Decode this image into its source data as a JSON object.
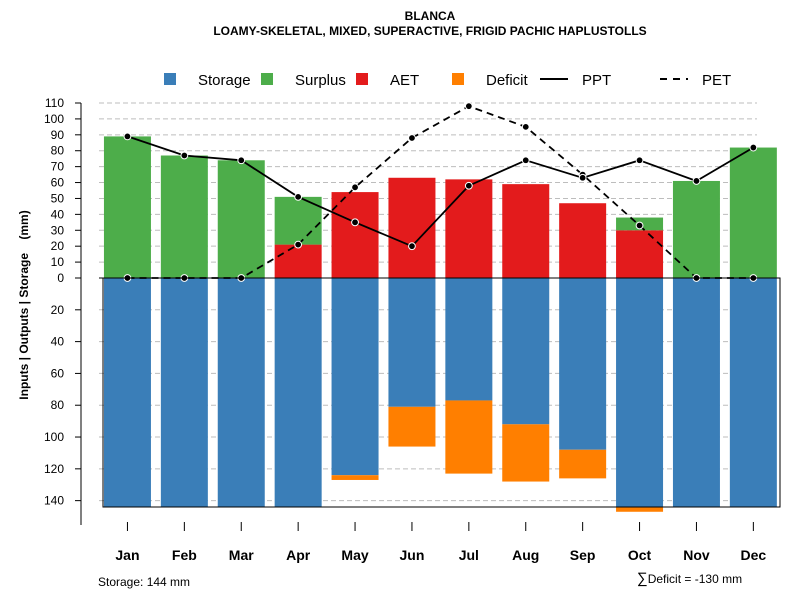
{
  "chart_data": {
    "type": "bar",
    "title": "BLANCA",
    "subtitle": "LOAMY-SKELETAL, MIXED, SUPERACTIVE, FRIGID PACHIC HAPLUSTOLLS",
    "ylabel": "Inputs | Outputs | Storage    (mm)",
    "categories": [
      "Jan",
      "Feb",
      "Mar",
      "Apr",
      "May",
      "Jun",
      "Jul",
      "Aug",
      "Sep",
      "Oct",
      "Nov",
      "Dec"
    ],
    "upper_ticks": [
      0,
      10,
      20,
      30,
      40,
      50,
      60,
      70,
      80,
      90,
      100,
      110
    ],
    "lower_ticks": [
      20,
      40,
      60,
      80,
      100,
      120,
      140
    ],
    "upper_ylim": [
      0,
      110
    ],
    "lower_ylim": [
      0,
      144
    ],
    "legend": [
      {
        "label": "Storage",
        "kind": "box",
        "color": "#3a7eb8"
      },
      {
        "label": "Surplus",
        "kind": "box",
        "color": "#4dad4a"
      },
      {
        "label": "AET",
        "kind": "box",
        "color": "#e31b1c"
      },
      {
        "label": "Deficit",
        "kind": "box",
        "color": "#ff7f00"
      },
      {
        "label": "PPT",
        "kind": "solid",
        "color": "#000000"
      },
      {
        "label": "PET",
        "kind": "dashed",
        "color": "#000000"
      }
    ],
    "series": [
      {
        "name": "AET",
        "values": [
          0,
          0,
          0,
          21,
          54,
          63,
          62,
          59,
          47,
          30,
          0,
          0
        ]
      },
      {
        "name": "Surplus",
        "values": [
          89,
          77,
          74,
          30,
          0,
          0,
          0,
          0,
          0,
          8,
          61,
          82
        ]
      },
      {
        "name": "Storage",
        "values": [
          144,
          144,
          144,
          144,
          124,
          81,
          77,
          92,
          108,
          144,
          144,
          144
        ]
      },
      {
        "name": "Deficit",
        "values": [
          0,
          0,
          0,
          0,
          3,
          25,
          46,
          36,
          18,
          3,
          0,
          0
        ]
      },
      {
        "name": "PPT",
        "values": [
          89,
          77,
          74,
          51,
          35,
          20,
          58,
          74,
          63,
          74,
          61,
          82
        ]
      },
      {
        "name": "PET",
        "values": [
          0,
          0,
          0,
          21,
          57,
          88,
          108,
          95,
          65,
          33,
          0,
          0
        ]
      }
    ]
  },
  "footer": {
    "storage": "Storage: 144 mm",
    "sigma": "∑",
    "deficit": "Deficit = -130 mm"
  }
}
